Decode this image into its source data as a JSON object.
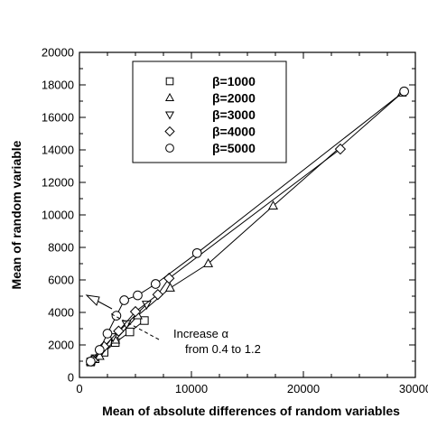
{
  "chart_data": {
    "type": "line",
    "xlabel": "Mean of absolute differences of random variables",
    "ylabel": "Mean of random variable",
    "xlim": [
      0,
      30000
    ],
    "ylim": [
      0,
      20000
    ],
    "xticks": [
      0,
      10000,
      20000,
      30000
    ],
    "xtick_labels": [
      "0",
      "10000",
      "20000",
      "30000"
    ],
    "yticks": [
      0,
      2000,
      4000,
      6000,
      8000,
      10000,
      12000,
      14000,
      16000,
      18000,
      20000
    ],
    "ytick_labels": [
      "0",
      "2000",
      "4000",
      "6000",
      "8000",
      "10000",
      "12000",
      "14000",
      "16000",
      "18000",
      "20000"
    ],
    "grid": false,
    "legend_position": "top-center",
    "series": [
      {
        "name": "β=1000",
        "marker": "square",
        "points": [
          [
            1000,
            950
          ],
          [
            1400,
            1150
          ],
          [
            2200,
            1550
          ],
          [
            3200,
            2150
          ],
          [
            4500,
            2800
          ],
          [
            5800,
            3500
          ]
        ]
      },
      {
        "name": "β=2000",
        "marker": "triangle-up",
        "points": [
          [
            1000,
            980
          ],
          [
            1800,
            1300
          ],
          [
            3200,
            2300
          ],
          [
            5200,
            3800
          ],
          [
            8100,
            5500
          ],
          [
            11500,
            7000
          ],
          [
            17300,
            10550
          ],
          [
            28800,
            17500
          ]
        ]
      },
      {
        "name": "β=3000",
        "marker": "triangle-down",
        "points": [
          [
            1100,
            1000
          ],
          [
            2000,
            1650
          ],
          [
            3000,
            2500
          ],
          [
            4200,
            3300
          ],
          [
            6000,
            4500
          ]
        ]
      },
      {
        "name": "β=4000",
        "marker": "diamond",
        "points": [
          [
            1200,
            1050
          ],
          [
            2200,
            1900
          ],
          [
            3500,
            2850
          ],
          [
            5000,
            4050
          ],
          [
            7000,
            5100
          ],
          [
            8000,
            6100
          ],
          [
            23300,
            14050
          ]
        ]
      },
      {
        "name": "β=5000",
        "marker": "circle",
        "points": [
          [
            1000,
            980
          ],
          [
            1800,
            1700
          ],
          [
            2500,
            2700
          ],
          [
            3300,
            3800
          ],
          [
            4000,
            4750
          ],
          [
            5200,
            5050
          ],
          [
            6800,
            5750
          ],
          [
            10500,
            7650
          ],
          [
            29000,
            17600
          ]
        ]
      }
    ],
    "annotation": {
      "text_line1": "Increase α",
      "text_line2": "from 0.4 to 1.2"
    }
  }
}
